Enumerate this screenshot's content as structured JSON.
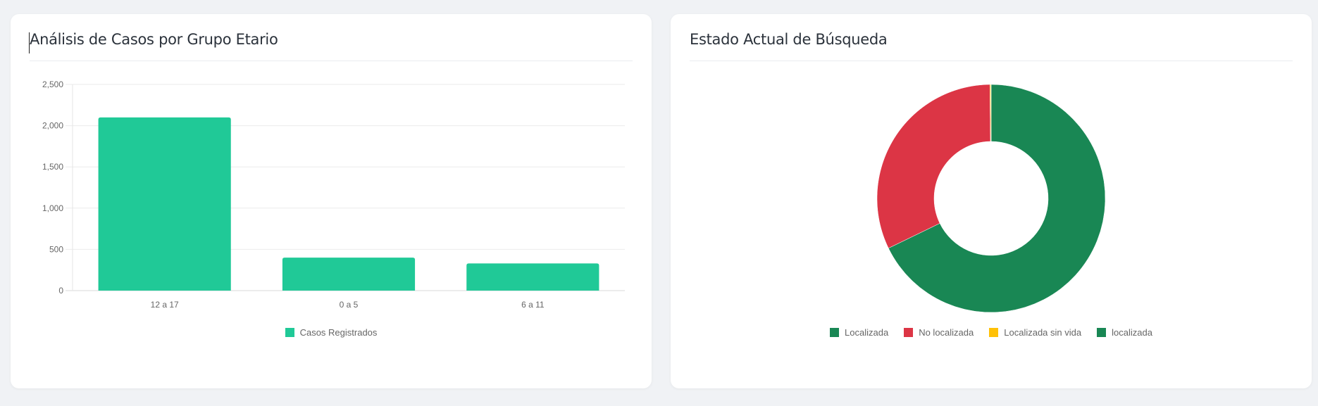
{
  "cards": {
    "age": {
      "title": "Análisis de Casos por Grupo Etario"
    },
    "status": {
      "title": "Estado Actual de Búsqueda"
    }
  },
  "colors": {
    "background": "#f0f2f5",
    "bar": "#20c997",
    "localizada": "#198754",
    "no_localizada": "#dc3545",
    "localizada_sin_vida": "#ffc107",
    "localizada_lower": "#198754"
  },
  "chart_data": [
    {
      "type": "bar",
      "title": "Análisis de Casos por Grupo Etario",
      "categories": [
        "12 a 17",
        "0 a 5",
        "6 a 11"
      ],
      "series": [
        {
          "name": "Casos Registrados",
          "values": [
            2100,
            400,
            330
          ],
          "color": "#20c997"
        }
      ],
      "xlabel": "",
      "ylabel": "",
      "ylim": [
        0,
        2500
      ],
      "yticks": [
        "0",
        "500",
        "1,000",
        "1,500",
        "2,000",
        "2,500"
      ],
      "grid": true,
      "legend_position": "bottom"
    },
    {
      "type": "pie",
      "subtype": "doughnut",
      "title": "Estado Actual de Búsqueda",
      "labels": [
        "Localizada",
        "No localizada",
        "Localizada sin vida",
        "localizada"
      ],
      "values": [
        1919,
        906,
        4,
        1
      ],
      "percentages_estimated": [
        67.8,
        32.0,
        0.15,
        0.04
      ],
      "colors": [
        "#198754",
        "#dc3545",
        "#ffc107",
        "#198754"
      ],
      "legend_position": "bottom"
    }
  ],
  "bar_legend": [
    {
      "label": "Casos Registrados",
      "color": "#20c997"
    }
  ],
  "donut_legend": [
    {
      "label": "Localizada",
      "color": "#198754"
    },
    {
      "label": "No localizada",
      "color": "#dc3545"
    },
    {
      "label": "Localizada sin vida",
      "color": "#ffc107"
    },
    {
      "label": "localizada",
      "color": "#198754"
    }
  ]
}
